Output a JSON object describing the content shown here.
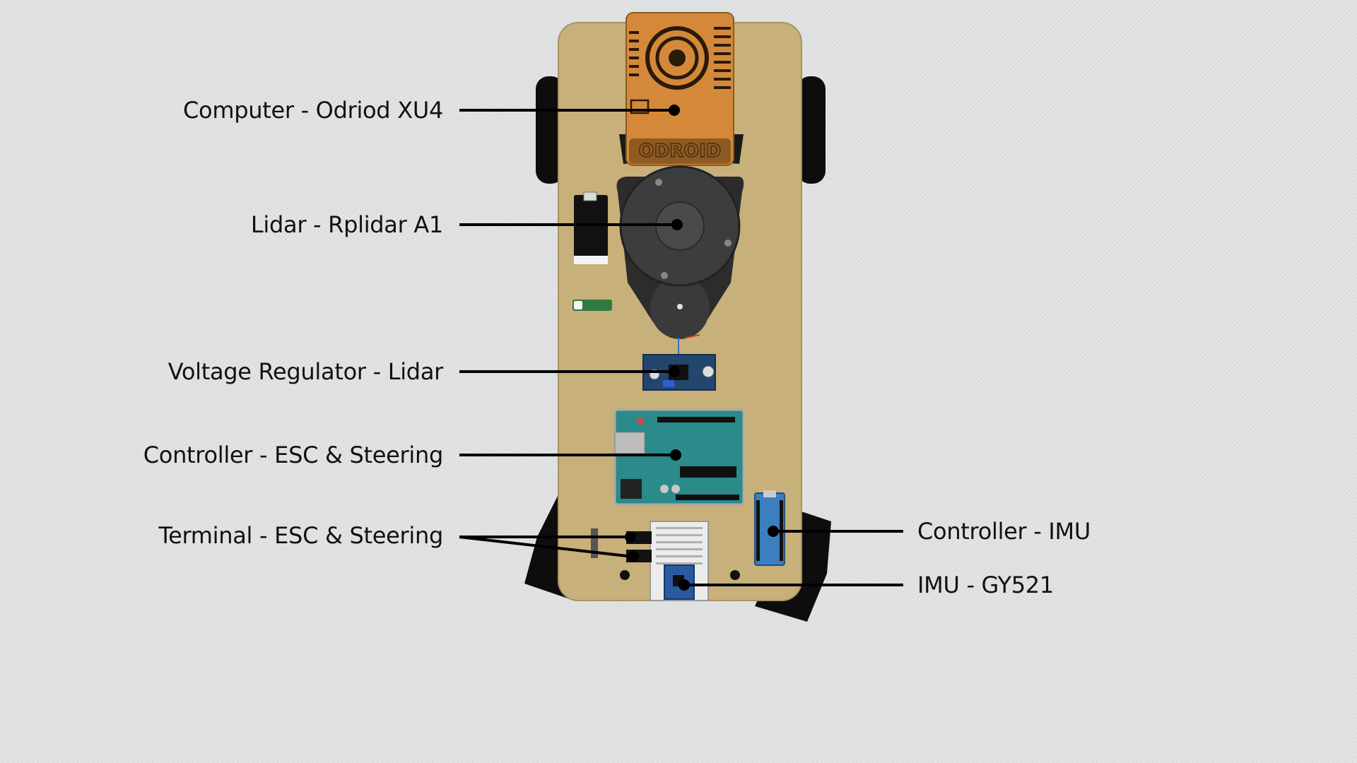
{
  "labels": {
    "computer": "Computer - Odriod XU4",
    "lidar": "Lidar - Rplidar A1",
    "regulator": "Voltage Regulator - Lidar",
    "controller_esc": "Controller - ESC & Steering",
    "terminal": "Terminal - ESC & Steering",
    "controller_imu": "Controller - IMU",
    "imu": "IMU - GY521"
  },
  "colors": {
    "chassis": "#c8b07a",
    "computer_case": "#d4893a",
    "lidar_body": "#3a3a3a",
    "arduino_board": "#2b8a8a",
    "nano_board": "#3b7fc0",
    "tire": "#0d0d0d",
    "leader": "#000000"
  }
}
